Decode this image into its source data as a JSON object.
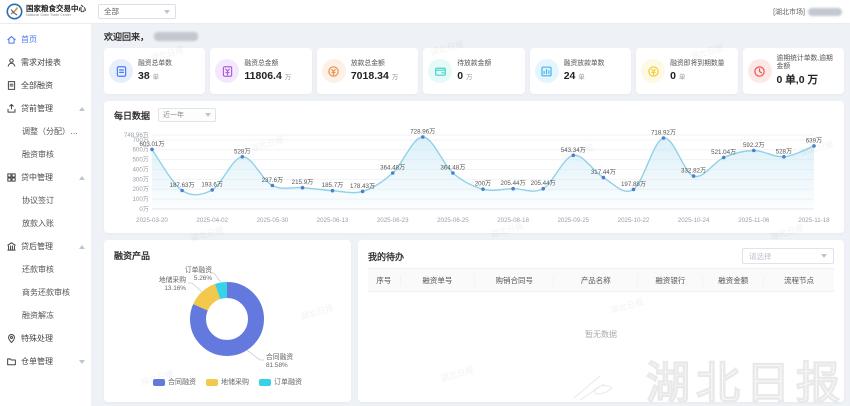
{
  "header": {
    "logo_title": "国家粮食交易中心",
    "logo_subtitle": "National Grain Trade Center",
    "market_select": "全部",
    "region_label": "[湖北市场]"
  },
  "sidebar": {
    "items": [
      {
        "label": "首页",
        "icon": "home",
        "type": "item",
        "active": true
      },
      {
        "label": "需求对接表",
        "icon": "user",
        "type": "item"
      },
      {
        "label": "全部融资",
        "icon": "doc",
        "type": "item"
      },
      {
        "label": "贷前管理",
        "icon": "upload",
        "type": "group",
        "expanded": true
      },
      {
        "label": "调整（分配）银行",
        "type": "child"
      },
      {
        "label": "融资审核",
        "type": "child"
      },
      {
        "label": "贷中管理",
        "icon": "grid",
        "type": "group",
        "expanded": true
      },
      {
        "label": "协议签订",
        "type": "child"
      },
      {
        "label": "放款入账",
        "type": "child"
      },
      {
        "label": "贷后管理",
        "icon": "bank",
        "type": "group",
        "expanded": true
      },
      {
        "label": "还款审核",
        "type": "child"
      },
      {
        "label": "商务还款审核",
        "type": "child"
      },
      {
        "label": "融资解冻",
        "type": "child"
      },
      {
        "label": "特殊处理",
        "icon": "pin",
        "type": "item"
      },
      {
        "label": "仓单管理",
        "icon": "folder",
        "type": "group",
        "expanded": false
      }
    ]
  },
  "main": {
    "welcome_prefix": "欢迎回来，"
  },
  "stats": [
    {
      "label": "融资总单数",
      "value": "38",
      "unit": "单",
      "color": "#4d7cf5",
      "icon": "file"
    },
    {
      "label": "融资总金额",
      "value": "11806.4",
      "unit": "万",
      "color": "#b05ce6",
      "icon": "money"
    },
    {
      "label": "放款总金额",
      "value": "7018.34",
      "unit": "万",
      "color": "#f0924d",
      "icon": "coin"
    },
    {
      "label": "待放款金额",
      "value": "0",
      "unit": "万",
      "color": "#45d6c8",
      "icon": "wallet"
    },
    {
      "label": "融资放款单数",
      "value": "24",
      "unit": "单",
      "color": "#3fb3f0",
      "icon": "chart"
    },
    {
      "label": "融资即将到期数量",
      "value": "0",
      "unit": "单",
      "color": "#f2cf3d",
      "icon": "coin"
    },
    {
      "label": "逾期统计单数,逾期金额",
      "value": "0 单,0 万",
      "unit": "",
      "color": "#ef5350",
      "icon": "clock"
    }
  ],
  "panels": {
    "daily": {
      "title": "每日数据",
      "range": "近一年"
    },
    "products": {
      "title": "融资产品"
    },
    "todo": {
      "title": "我的待办",
      "select_placeholder": "请选择",
      "columns": [
        "序号",
        "融资单号",
        "购销合同号",
        "产品名称",
        "融资银行",
        "融资金额",
        "流程节点"
      ],
      "empty": "暂无数据"
    }
  },
  "watermark": {
    "brand": "湖北日报"
  },
  "chart_data": [
    {
      "type": "line",
      "title": "每日数据",
      "x_tick_labels": [
        "2025-03-20",
        "2025-04-02",
        "2025-05-30",
        "2025-06-13",
        "2025-06-23",
        "2025-06-25",
        "2025-08-18",
        "2025-09-25",
        "2025-10-22",
        "2025-10-24",
        "2025-11-06",
        "2025-11-18"
      ],
      "values": [
        603.01,
        187.63,
        193.6,
        528,
        237.6,
        215.9,
        185.7,
        178.43,
        364.48,
        728.96,
        364.48,
        200,
        205.44,
        205.44,
        543.34,
        317.44,
        197.88,
        718.92,
        332.82,
        521.04,
        592.2,
        528,
        639
      ],
      "point_labels": [
        "603.01万",
        "187.63万",
        "193.6万",
        "528万",
        "237.6万",
        "215.9万",
        "185.7万",
        "178.43万",
        "364.48万",
        "728.96万",
        "364.48万",
        "200万",
        "205.44万",
        "205.44万",
        "543.34万",
        "317.44万",
        "197.88万",
        "718.92万",
        "332.82万",
        "521.04万",
        "592.2万",
        "528万",
        "639万"
      ],
      "y_ticks": [
        {
          "v": 0,
          "label": "0万"
        },
        {
          "v": 100,
          "label": "100万"
        },
        {
          "v": 200,
          "label": "200万"
        },
        {
          "v": 300,
          "label": "300万"
        },
        {
          "v": 400,
          "label": "400万"
        },
        {
          "v": 500,
          "label": "500万"
        },
        {
          "v": 600,
          "label": "600万"
        },
        {
          "v": 700,
          "label": "700万"
        },
        {
          "v": 748.96,
          "label": "748.96万"
        }
      ],
      "ylim": [
        0,
        748.96
      ],
      "line_color": "#8fd2e8",
      "marker_color": "#4c7fc8",
      "area_color": "#bfe3f2"
    },
    {
      "type": "pie",
      "title": "融资产品",
      "slices": [
        {
          "name": "合同融资",
          "pct": 81.58,
          "label": "合同融资\n81.58%",
          "color": "#6379dd"
        },
        {
          "name": "地储采购",
          "pct": 13.16,
          "label": "地储采购\n13.16%",
          "color": "#f2c94c"
        },
        {
          "name": "订单融资",
          "pct": 5.26,
          "label": "订单融资\n5.26%",
          "color": "#36d3e6"
        }
      ],
      "legend": [
        "合同融资",
        "地储采购",
        "订单融资"
      ],
      "legend_position": "bottom"
    }
  ]
}
